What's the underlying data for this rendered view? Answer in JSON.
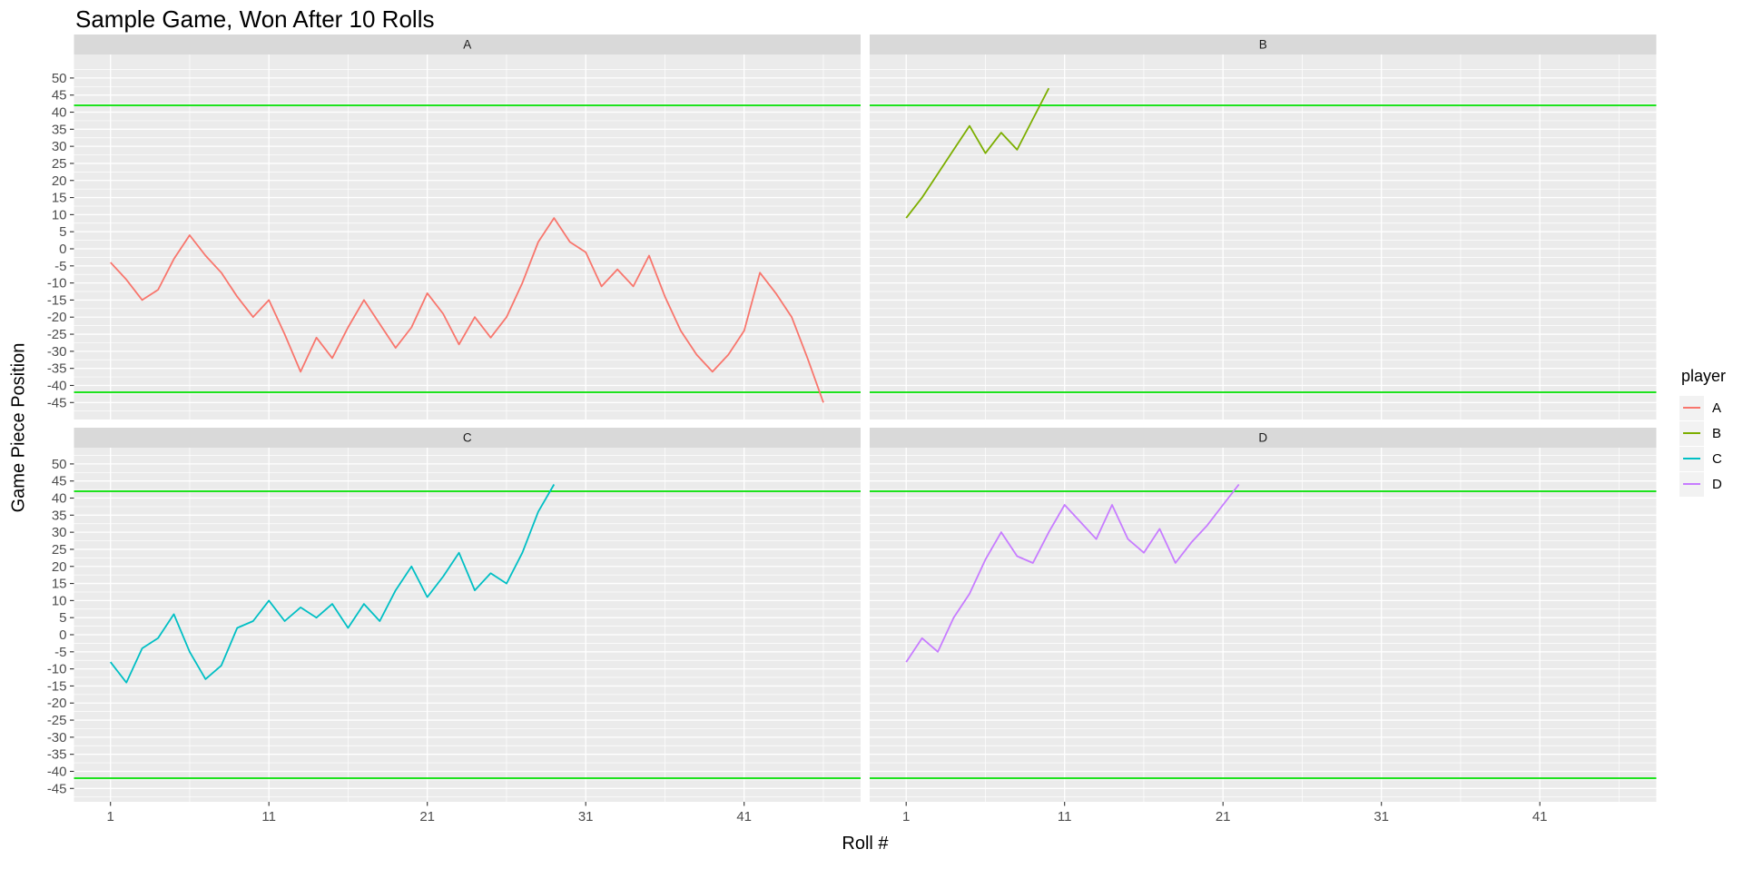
{
  "title": "Sample Game, Won After 10 Rolls",
  "legend": {
    "title": "player"
  },
  "chart_data": {
    "type": "line",
    "title": "Sample Game, Won After 10 Rolls",
    "xlabel": "Roll #",
    "ylabel": "Game Piece Position",
    "facet_variable": "player",
    "legend_position": "right",
    "grid": true,
    "panel_bg": "#EBEBEB",
    "grid_color": "#FFFFFF",
    "strip_bg": "#D9D9D9",
    "strip_text_color": "#1A1A1A",
    "tick_text_color": "#4D4D4D",
    "x_breaks": [
      1,
      11,
      21,
      31,
      41
    ],
    "x_minor_breaks": [
      6,
      16,
      26,
      36,
      46
    ],
    "y_breaks": [
      50,
      45,
      40,
      35,
      30,
      25,
      20,
      15,
      10,
      5,
      0,
      -5,
      -10,
      -15,
      -20,
      -25,
      -30,
      -35,
      -40,
      -45
    ],
    "xlim": [
      -1.3,
      48.3
    ],
    "ylim": [
      -50,
      57
    ],
    "hlines": {
      "values": [
        42,
        -42
      ],
      "color": "#00E000",
      "note": "win/lose thresholds"
    },
    "x_start": 1,
    "series": [
      {
        "name": "A",
        "color": "#F8766D",
        "values": [
          -4,
          -9,
          -15,
          -12,
          -3,
          4,
          -2,
          -7,
          -14,
          -20,
          -15,
          -25,
          -36,
          -26,
          -32,
          -23,
          -15,
          -22,
          -29,
          -23,
          -13,
          -19,
          -28,
          -20,
          -26,
          -20,
          -10,
          2,
          9,
          2,
          -1,
          -11,
          -6,
          -11,
          -2,
          -14,
          -24,
          -31,
          -36,
          -31,
          -24,
          -7,
          -13,
          -20,
          -32,
          -45
        ]
      },
      {
        "name": "B",
        "color": "#7CAE00",
        "values": [
          9,
          15,
          22,
          29,
          36,
          28,
          34,
          29,
          38,
          47
        ]
      },
      {
        "name": "C",
        "color": "#00BFC4",
        "values": [
          -8,
          -14,
          -4,
          -1,
          6,
          -5,
          -13,
          -9,
          2,
          4,
          10,
          4,
          8,
          5,
          9,
          2,
          9,
          4,
          13,
          20,
          11,
          17,
          24,
          13,
          18,
          15,
          24,
          36,
          44
        ]
      },
      {
        "name": "D",
        "color": "#C77CFF",
        "values": [
          -8,
          -1,
          -5,
          5,
          12,
          22,
          30,
          23,
          21,
          30,
          38,
          33,
          28,
          38,
          28,
          24,
          31,
          21,
          27,
          32,
          38,
          44
        ]
      }
    ]
  }
}
